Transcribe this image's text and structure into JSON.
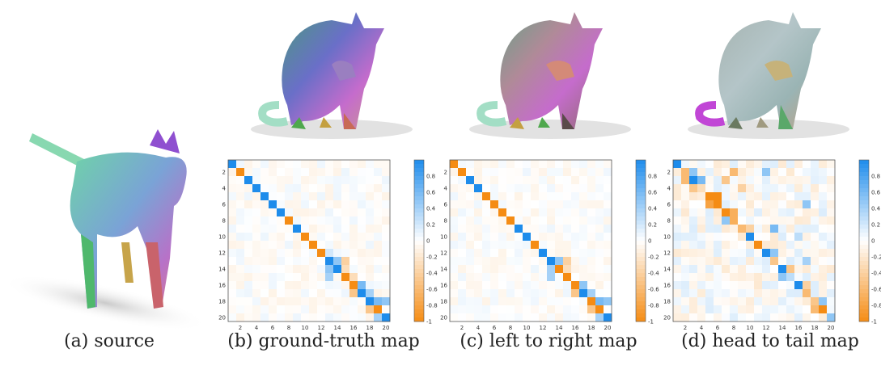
{
  "captions": [
    "(a) source",
    "(b) ground-truth map",
    "(c) left to right map",
    "(d) head to tail map"
  ],
  "chart_data": [
    {
      "type": "heatmap",
      "title": "",
      "xlabel": "",
      "ylabel": "",
      "x_ticks": [
        "2",
        "4",
        "6",
        "8",
        "10",
        "12",
        "14",
        "16",
        "18",
        "20"
      ],
      "y_ticks": [
        "2",
        "4",
        "6",
        "8",
        "10",
        "12",
        "14",
        "16",
        "18",
        "20"
      ],
      "size": 20,
      "colorbar_ticks": [
        "0.8",
        "0.6",
        "0.4",
        "0.2",
        "0",
        "-0.2",
        "-0.4",
        "-0.6",
        "-0.8",
        "-1"
      ],
      "range": [
        -1,
        1
      ],
      "diagonal": [
        1,
        -1,
        1,
        1,
        1,
        1,
        1,
        -1,
        1,
        -1,
        -1,
        -1,
        1,
        1,
        -1,
        -1,
        1,
        1,
        -1,
        1
      ],
      "offdiag": [
        [
          12,
          13,
          0.5
        ],
        [
          13,
          12,
          0.5
        ],
        [
          12,
          14,
          -0.4
        ],
        [
          14,
          12,
          0.4
        ],
        [
          15,
          16,
          0.6
        ],
        [
          16,
          15,
          -0.5
        ],
        [
          17,
          18,
          0.6
        ],
        [
          18,
          17,
          -0.5
        ],
        [
          16,
          17,
          0.4
        ],
        [
          17,
          19,
          0.5
        ],
        [
          19,
          18,
          0.4
        ],
        [
          13,
          14,
          -0.3
        ],
        [
          11,
          12,
          0.2
        ],
        [
          14,
          15,
          -0.3
        ]
      ]
    },
    {
      "type": "heatmap",
      "title": "",
      "xlabel": "",
      "ylabel": "",
      "x_ticks": [
        "2",
        "4",
        "6",
        "8",
        "10",
        "12",
        "14",
        "16",
        "18",
        "20"
      ],
      "y_ticks": [
        "2",
        "4",
        "6",
        "8",
        "10",
        "12",
        "14",
        "16",
        "18",
        "20"
      ],
      "size": 20,
      "colorbar_ticks": [
        "0.8",
        "0.6",
        "0.4",
        "0.2",
        "0",
        "-0.2",
        "-0.4",
        "-0.6",
        "-0.8",
        "-1"
      ],
      "range": [
        -1,
        1
      ],
      "diagonal": [
        -1,
        -1,
        1,
        1,
        -1,
        -1,
        -1,
        -1,
        1,
        1,
        -1,
        1,
        1,
        -1,
        -1,
        -1,
        1,
        -1,
        -1,
        1
      ],
      "offdiag": [
        [
          12,
          13,
          0.5
        ],
        [
          13,
          12,
          0.4
        ],
        [
          12,
          14,
          -0.4
        ],
        [
          14,
          12,
          0.4
        ],
        [
          15,
          16,
          0.5
        ],
        [
          16,
          15,
          -0.5
        ],
        [
          17,
          18,
          0.6
        ],
        [
          18,
          17,
          -0.5
        ],
        [
          16,
          17,
          0.4
        ],
        [
          17,
          19,
          0.5
        ],
        [
          19,
          18,
          0.4
        ],
        [
          13,
          14,
          -0.3
        ]
      ]
    },
    {
      "type": "heatmap",
      "title": "",
      "xlabel": "",
      "ylabel": "",
      "x_ticks": [
        "2",
        "4",
        "6",
        "8",
        "10",
        "12",
        "14",
        "16",
        "18",
        "20"
      ],
      "y_ticks": [
        "2",
        "4",
        "6",
        "8",
        "10",
        "12",
        "14",
        "16",
        "18",
        "20"
      ],
      "size": 20,
      "colorbar_ticks": [
        "0.8",
        "0.6",
        "0.4",
        "0.2",
        "0",
        "-0.2",
        "-0.4",
        "-0.6",
        "-0.8",
        "-1"
      ],
      "range": [
        -1,
        1
      ],
      "diagonal": [
        1,
        -0.6,
        1,
        -0.3,
        -1,
        -1,
        -1,
        -0.7,
        -0.6,
        1,
        -1,
        1,
        -0.5,
        1,
        0.3,
        1,
        -0.6,
        -0.5,
        -1,
        0.5
      ],
      "offdiag": [
        [
          1,
          2,
          0.5
        ],
        [
          2,
          1,
          -0.6
        ],
        [
          2,
          3,
          0.6
        ],
        [
          3,
          2,
          -0.5
        ],
        [
          4,
          5,
          -1
        ],
        [
          5,
          4,
          -0.8
        ],
        [
          6,
          7,
          -0.7
        ],
        [
          7,
          6,
          0.5
        ],
        [
          8,
          9,
          -0.4
        ],
        [
          11,
          12,
          0.5
        ],
        [
          13,
          14,
          -0.5
        ],
        [
          14,
          13,
          0.5
        ],
        [
          15,
          16,
          -0.4
        ],
        [
          17,
          18,
          0.5
        ],
        [
          18,
          17,
          -0.6
        ],
        [
          1,
          7,
          -0.6
        ],
        [
          3,
          8,
          -0.4
        ],
        [
          1,
          11,
          0.5
        ],
        [
          2,
          6,
          -0.5
        ],
        [
          8,
          12,
          0.6
        ],
        [
          5,
          16,
          0.5
        ],
        [
          12,
          16,
          0.4
        ],
        [
          9,
          15,
          0.3
        ]
      ]
    }
  ]
}
